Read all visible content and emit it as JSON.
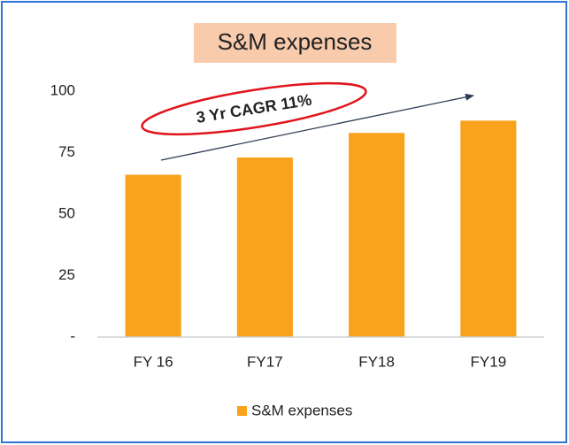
{
  "chart_data": {
    "type": "bar",
    "title": "S&M expenses",
    "categories": [
      "FY 16",
      "FY17",
      "FY18",
      "FY19"
    ],
    "series": [
      {
        "name": "S&M expenses",
        "color": "#f9a21b",
        "values": [
          66,
          73,
          83,
          88
        ]
      }
    ],
    "ylim": [
      0,
      100
    ],
    "yticks": [
      {
        "value": 0,
        "label": "-"
      },
      25,
      50,
      75,
      100
    ],
    "grid": false,
    "legend": "bottom",
    "annotation": "3 Yr CAGR 11%"
  }
}
